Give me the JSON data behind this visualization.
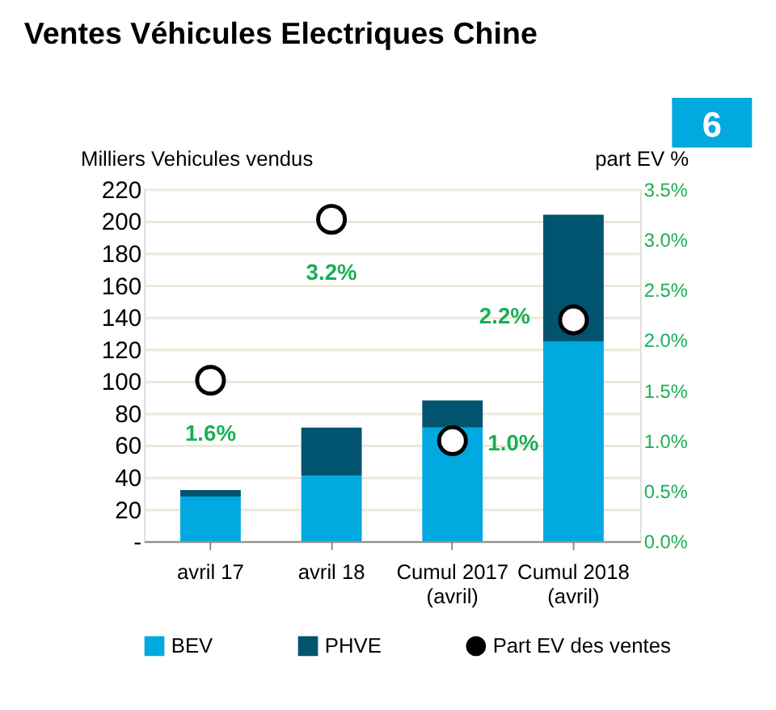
{
  "chart_data": {
    "type": "bar",
    "title": "Ventes Véhicules Electriques Chine",
    "annotations": [
      "6"
    ],
    "ylabel": "Milliers Vehicules vendus",
    "y2label": "part EV %",
    "categories": [
      "avril 17",
      "avril 18",
      "Cumul 2017\n(avril)",
      "Cumul 2018\n(avril)"
    ],
    "stacked": true,
    "series": [
      {
        "name": "BEV",
        "color": "#00a9e0",
        "values": [
          28,
          41,
          71,
          125
        ]
      },
      {
        "name": "PHVE",
        "color": "#00546f",
        "values": [
          4,
          30,
          17,
          79
        ]
      },
      {
        "name": "Part EV des ventes",
        "type": "scatter",
        "axis": "y2",
        "color": "#000000",
        "marker": "circle",
        "values": [
          1.6,
          3.2,
          1.0,
          2.2
        ],
        "value_labels": [
          "1.6%",
          "3.2%",
          "1.0%",
          "2.2%"
        ]
      }
    ],
    "ylim": [
      0,
      220
    ],
    "yticks": [
      {
        "value": 0,
        "label": "-"
      },
      20,
      40,
      60,
      80,
      100,
      120,
      140,
      160,
      180,
      200,
      220
    ],
    "y2lim": [
      0,
      3.5
    ],
    "y2ticks": [
      {
        "value": 0,
        "label": "0.0%"
      },
      {
        "value": 0.5,
        "label": "0.5%"
      },
      {
        "value": 1,
        "label": "1.0%"
      },
      {
        "value": 1.5,
        "label": "1.5%"
      },
      {
        "value": 2,
        "label": "2.0%"
      },
      {
        "value": 2.5,
        "label": "2.5%"
      },
      {
        "value": 3,
        "label": "3.0%"
      },
      {
        "value": 3.5,
        "label": "3.5%"
      }
    ],
    "grid": "y",
    "legend": "bottom"
  }
}
